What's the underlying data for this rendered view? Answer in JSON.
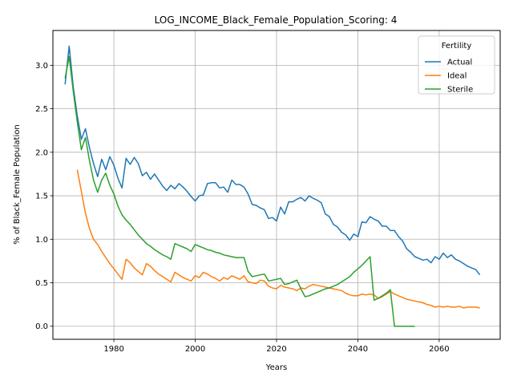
{
  "chart_data": {
    "type": "line",
    "title": "LOG_INCOME_Black_Female_Population_Scoring: 4",
    "xlabel": "Years",
    "ylabel": "% of Black_Female Population",
    "xlim": [
      1965,
      2075
    ],
    "ylim": [
      -0.15,
      3.4
    ],
    "xticks": [
      1980,
      2000,
      2020,
      2040,
      2060
    ],
    "yticks": [
      0.0,
      0.5,
      1.0,
      1.5,
      2.0,
      2.5,
      3.0
    ],
    "ytick_labels": [
      "0.0",
      "0.5",
      "1.0",
      "1.5",
      "2.0",
      "2.5",
      "3.0"
    ],
    "grid": true,
    "legend": {
      "title": "Fertility",
      "placement": "top-right"
    },
    "series": [
      {
        "name": "Actual",
        "color": "#1f77b4",
        "x": [
          1968,
          1969,
          1970,
          1971,
          1972,
          1973,
          1974,
          1975,
          1976,
          1977,
          1978,
          1979,
          1980,
          1981,
          1982,
          1983,
          1984,
          1985,
          1986,
          1987,
          1988,
          1989,
          1990,
          1991,
          1992,
          1993,
          1994,
          1995,
          1996,
          1997,
          1998,
          1999,
          2000,
          2001,
          2002,
          2003,
          2004,
          2005,
          2006,
          2007,
          2008,
          2009,
          2010,
          2011,
          2012,
          2013,
          2014,
          2015,
          2016,
          2017,
          2018,
          2019,
          2020,
          2021,
          2022,
          2023,
          2024,
          2025,
          2026,
          2027,
          2028,
          2029,
          2030,
          2031,
          2032,
          2033,
          2034,
          2035,
          2036,
          2037,
          2038,
          2039,
          2040,
          2041,
          2042,
          2043,
          2044,
          2045,
          2046,
          2047,
          2048,
          2049,
          2050,
          2051,
          2052,
          2053,
          2054,
          2055,
          2056,
          2057,
          2058,
          2059,
          2060,
          2061,
          2062,
          2063,
          2064,
          2065,
          2066,
          2067,
          2068,
          2069,
          2070
        ],
        "y": [
          2.78,
          3.22,
          2.75,
          2.42,
          2.15,
          2.27,
          2.05,
          1.87,
          1.72,
          1.92,
          1.8,
          1.95,
          1.85,
          1.7,
          1.59,
          1.93,
          1.86,
          1.94,
          1.87,
          1.73,
          1.77,
          1.69,
          1.75,
          1.68,
          1.61,
          1.56,
          1.62,
          1.58,
          1.64,
          1.6,
          1.55,
          1.49,
          1.44,
          1.5,
          1.51,
          1.64,
          1.65,
          1.65,
          1.59,
          1.6,
          1.54,
          1.68,
          1.63,
          1.63,
          1.6,
          1.52,
          1.4,
          1.39,
          1.36,
          1.34,
          1.24,
          1.25,
          1.21,
          1.37,
          1.29,
          1.43,
          1.43,
          1.46,
          1.48,
          1.44,
          1.5,
          1.47,
          1.45,
          1.42,
          1.29,
          1.26,
          1.17,
          1.14,
          1.08,
          1.05,
          0.99,
          1.06,
          1.03,
          1.2,
          1.19,
          1.26,
          1.23,
          1.21,
          1.15,
          1.15,
          1.1,
          1.1,
          1.03,
          0.98,
          0.89,
          0.85,
          0.8,
          0.78,
          0.76,
          0.77,
          0.73,
          0.8,
          0.77,
          0.84,
          0.79,
          0.82,
          0.77,
          0.75,
          0.72,
          0.69,
          0.67,
          0.65,
          0.59
        ]
      },
      {
        "name": "Ideal",
        "color": "#ff7f0e",
        "x": [
          1971,
          1972,
          1973,
          1974,
          1975,
          1976,
          1977,
          1978,
          1979,
          1980,
          1981,
          1982,
          1983,
          1984,
          1985,
          1986,
          1987,
          1988,
          1989,
          1990,
          1991,
          1992,
          1993,
          1994,
          1995,
          1996,
          1997,
          1998,
          1999,
          2000,
          2001,
          2002,
          2003,
          2004,
          2005,
          2006,
          2007,
          2008,
          2009,
          2010,
          2011,
          2012,
          2013,
          2014,
          2015,
          2016,
          2017,
          2018,
          2019,
          2020,
          2021,
          2022,
          2023,
          2024,
          2025,
          2026,
          2027,
          2028,
          2029,
          2030,
          2031,
          2032,
          2033,
          2034,
          2035,
          2036,
          2037,
          2038,
          2039,
          2040,
          2041,
          2042,
          2043,
          2044,
          2045,
          2046,
          2047,
          2048,
          2049,
          2050,
          2051,
          2052,
          2053,
          2054,
          2055,
          2056,
          2057,
          2058,
          2059,
          2060,
          2061,
          2062,
          2063,
          2064,
          2065,
          2066,
          2067,
          2068,
          2069,
          2070
        ],
        "y": [
          1.8,
          1.55,
          1.3,
          1.12,
          1.0,
          0.94,
          0.86,
          0.79,
          0.72,
          0.66,
          0.6,
          0.54,
          0.77,
          0.73,
          0.67,
          0.63,
          0.59,
          0.72,
          0.69,
          0.64,
          0.6,
          0.57,
          0.54,
          0.51,
          0.62,
          0.59,
          0.56,
          0.54,
          0.52,
          0.58,
          0.56,
          0.62,
          0.6,
          0.57,
          0.55,
          0.52,
          0.56,
          0.54,
          0.58,
          0.56,
          0.54,
          0.58,
          0.51,
          0.5,
          0.49,
          0.53,
          0.52,
          0.46,
          0.44,
          0.43,
          0.47,
          0.45,
          0.44,
          0.43,
          0.41,
          0.44,
          0.43,
          0.46,
          0.48,
          0.47,
          0.46,
          0.45,
          0.44,
          0.43,
          0.42,
          0.41,
          0.38,
          0.36,
          0.35,
          0.35,
          0.37,
          0.36,
          0.37,
          0.36,
          0.32,
          0.34,
          0.37,
          0.4,
          0.37,
          0.35,
          0.33,
          0.31,
          0.3,
          0.29,
          0.28,
          0.27,
          0.25,
          0.24,
          0.22,
          0.23,
          0.22,
          0.23,
          0.22,
          0.22,
          0.23,
          0.21,
          0.22,
          0.22,
          0.22,
          0.21
        ]
      },
      {
        "name": "Sterile",
        "color": "#2ca02c",
        "x": [
          1968,
          1969,
          1970,
          1971,
          1972,
          1973,
          1974,
          1975,
          1976,
          1977,
          1978,
          1979,
          1980,
          1981,
          1982,
          1983,
          1984,
          1985,
          1986,
          1987,
          1988,
          1989,
          1990,
          1991,
          1992,
          1993,
          1994,
          1995,
          1996,
          1997,
          1998,
          1999,
          2000,
          2001,
          2002,
          2003,
          2004,
          2005,
          2006,
          2007,
          2008,
          2009,
          2010,
          2011,
          2012,
          2013,
          2014,
          2015,
          2016,
          2017,
          2018,
          2019,
          2020,
          2021,
          2022,
          2023,
          2024,
          2025,
          2026,
          2027,
          2028,
          2029,
          2030,
          2031,
          2032,
          2033,
          2034,
          2035,
          2036,
          2037,
          2038,
          2039,
          2040,
          2041,
          2042,
          2043,
          2044,
          2045,
          2046,
          2047,
          2048,
          2049,
          2050,
          2051,
          2052,
          2053,
          2054
        ],
        "y": [
          2.85,
          3.1,
          2.7,
          2.35,
          2.03,
          2.17,
          1.9,
          1.68,
          1.54,
          1.68,
          1.76,
          1.62,
          1.52,
          1.38,
          1.28,
          1.22,
          1.17,
          1.11,
          1.05,
          1.0,
          0.95,
          0.92,
          0.88,
          0.85,
          0.82,
          0.8,
          0.77,
          0.95,
          0.93,
          0.91,
          0.89,
          0.86,
          0.94,
          0.92,
          0.9,
          0.88,
          0.87,
          0.85,
          0.84,
          0.82,
          0.81,
          0.8,
          0.79,
          0.79,
          0.79,
          0.63,
          0.57,
          0.58,
          0.59,
          0.6,
          0.52,
          0.53,
          0.54,
          0.55,
          0.48,
          0.49,
          0.51,
          0.53,
          0.43,
          0.34,
          0.35,
          0.37,
          0.39,
          0.41,
          0.43,
          0.44,
          0.46,
          0.48,
          0.51,
          0.54,
          0.57,
          0.62,
          0.66,
          0.7,
          0.75,
          0.8,
          0.3,
          0.32,
          0.35,
          0.38,
          0.42,
          0.0,
          0.0,
          0.0,
          0.0,
          0.0,
          0.0
        ]
      }
    ]
  }
}
